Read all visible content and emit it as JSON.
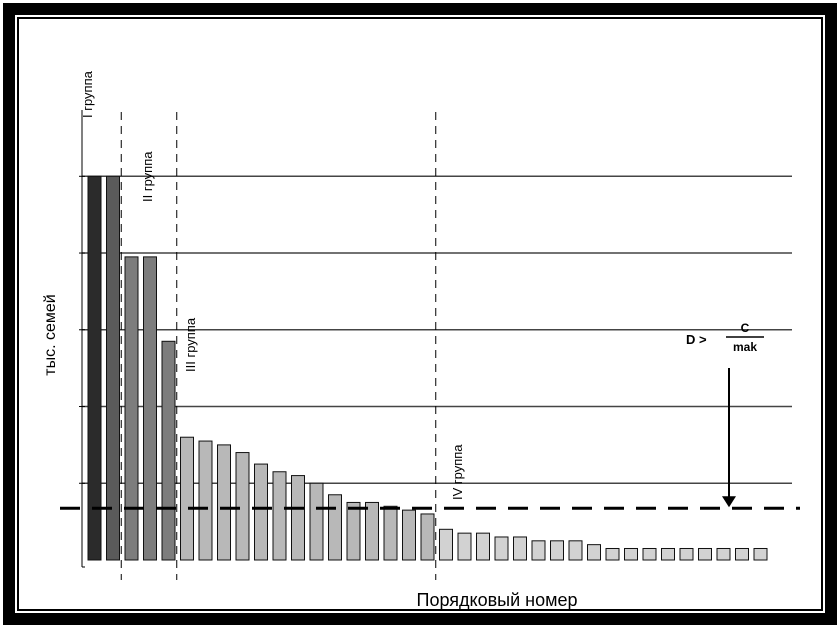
{
  "chart_data": {
    "type": "bar",
    "xlabel": "Порядковый номер",
    "ylabel": "тыс. семей",
    "groups": [
      {
        "label": "I группа",
        "first_bar": 1,
        "last_bar": 2
      },
      {
        "label": "II группа",
        "first_bar": 3,
        "last_bar": 5
      },
      {
        "label": "III группа",
        "first_bar": 6,
        "last_bar": 19
      },
      {
        "label": "IV группа",
        "first_bar": 20,
        "last_bar": 37
      }
    ],
    "values": [
      100,
      100,
      79,
      79,
      57,
      32,
      31,
      30,
      28,
      25,
      23,
      22,
      20,
      17,
      15,
      15,
      14,
      13,
      12,
      8,
      7,
      7,
      6,
      6,
      5,
      5,
      5,
      4,
      3,
      3,
      3,
      3,
      3,
      3,
      3,
      3,
      3
    ],
    "bar_colors": [
      "#2b2b2b",
      "#7d7d7d",
      "#b8b8b8",
      "#d2d2d2"
    ],
    "ylim": [
      0,
      135
    ],
    "gridlines": [
      20,
      40,
      60,
      80,
      100
    ],
    "threshold": {
      "value": 13.5,
      "label_left": "D >",
      "numerator": "C",
      "denominator": "mak"
    }
  }
}
